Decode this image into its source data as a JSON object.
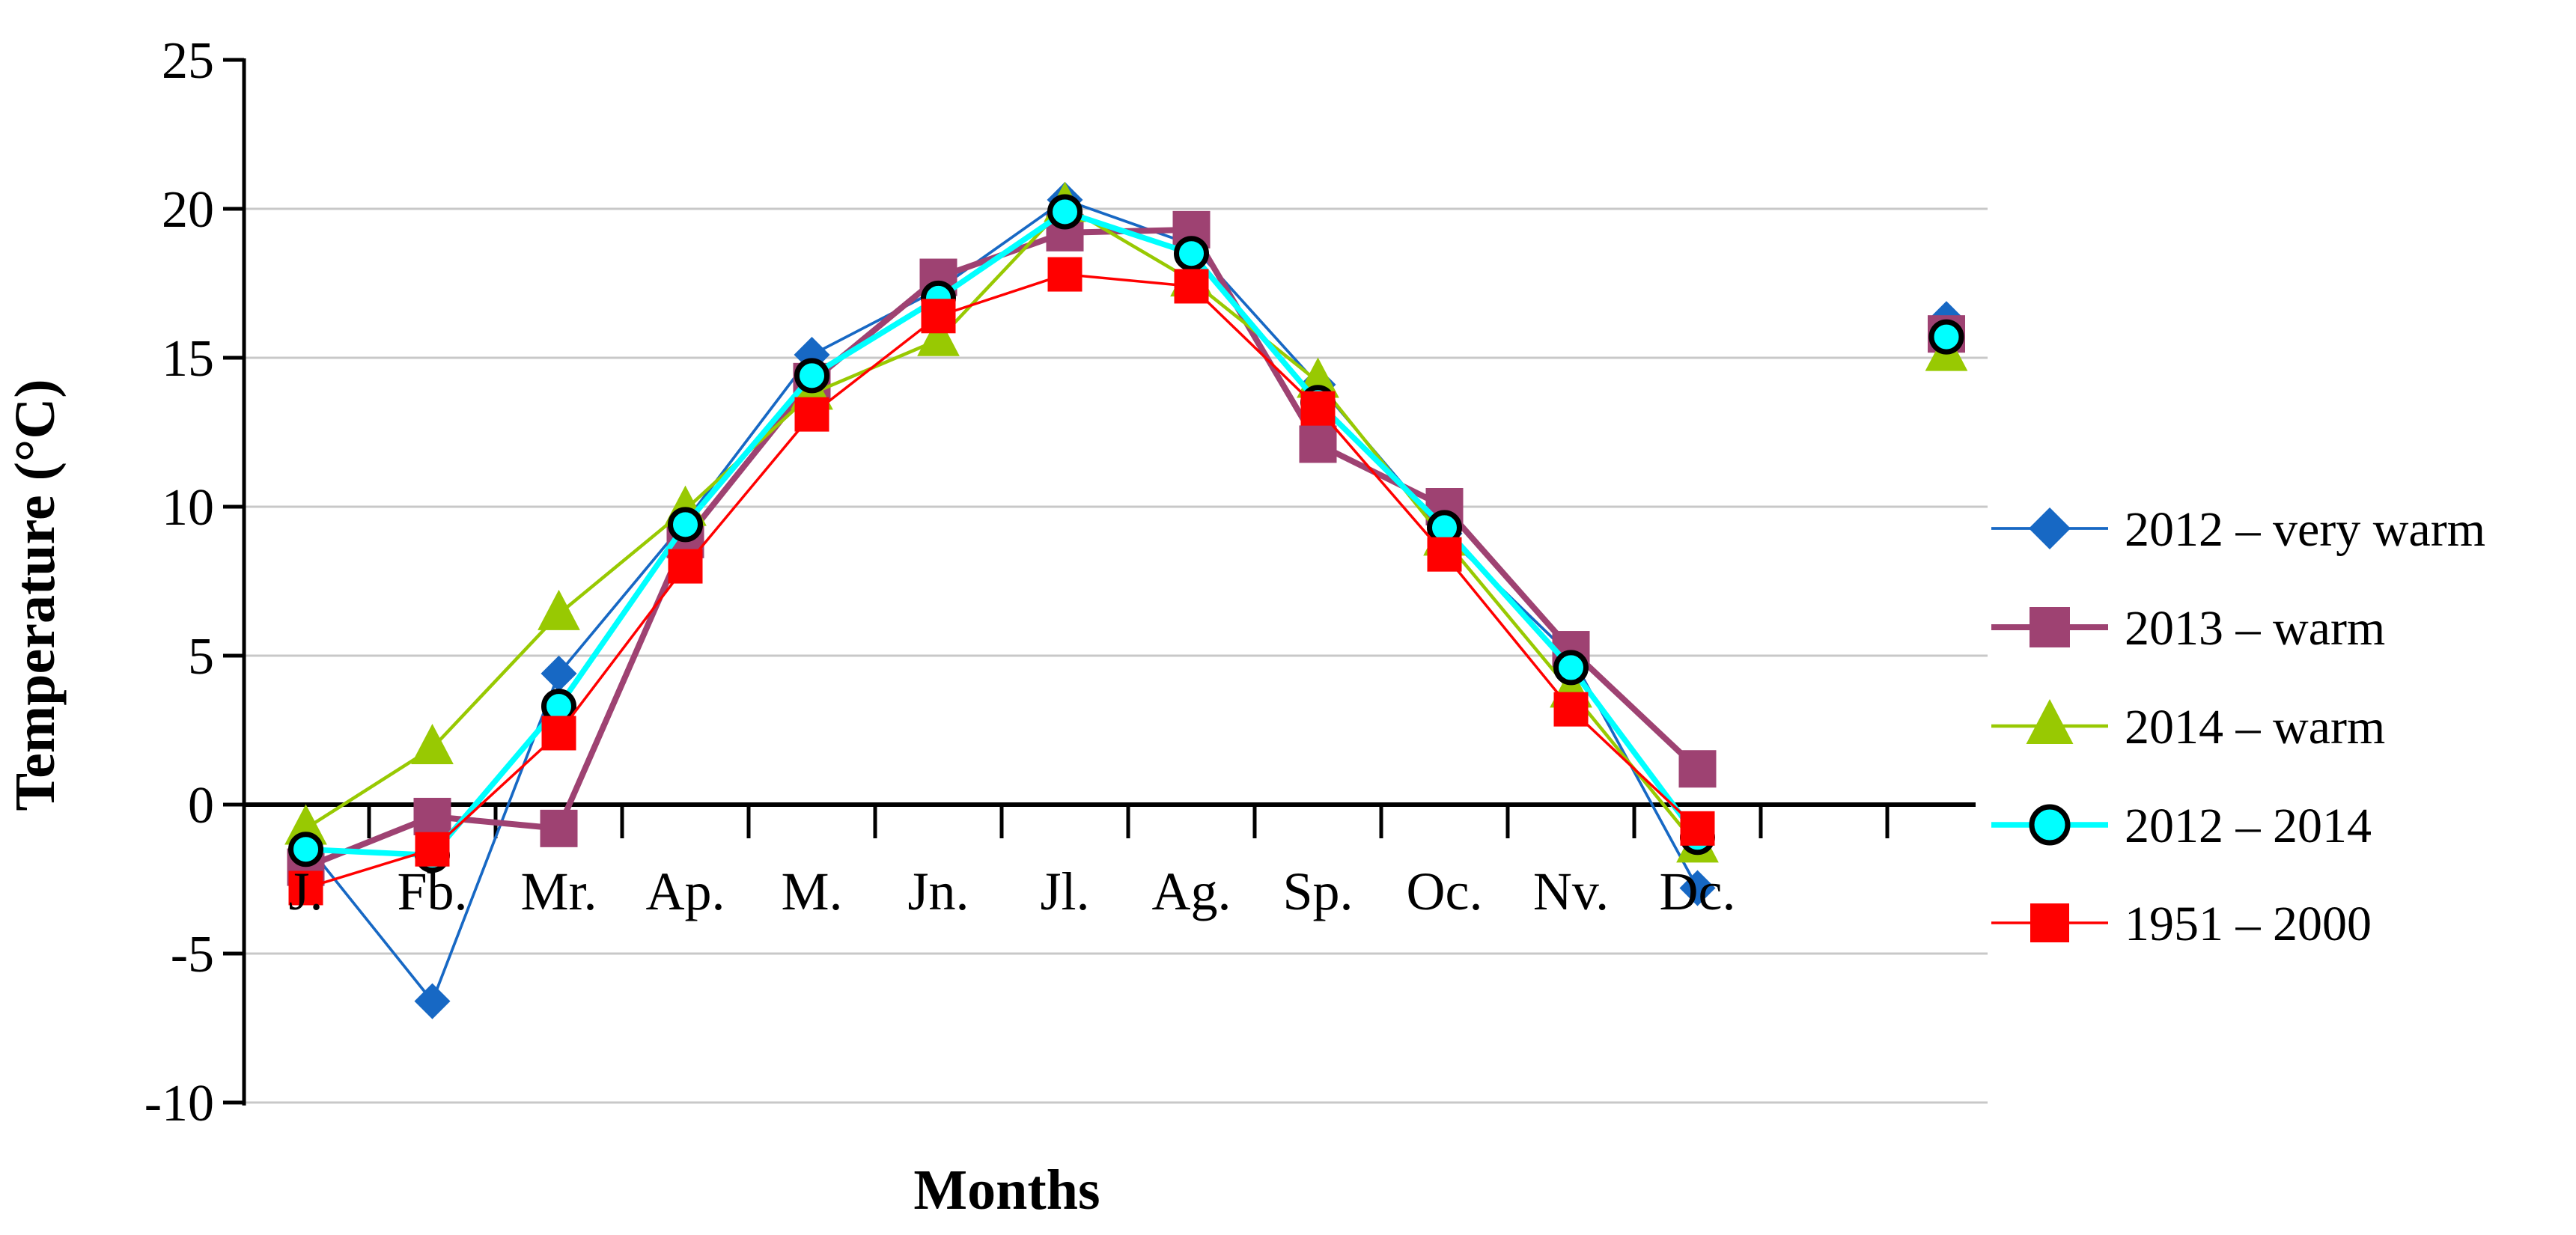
{
  "figure": {
    "background": "#FFFFFF",
    "y_axis_title": "Temperature (°C)",
    "x_axis_title": "Months"
  },
  "chart_data": {
    "type": "line",
    "title": "",
    "xlabel": "Months",
    "ylabel": "Temperature (°C)",
    "ylim": [
      -10,
      25
    ],
    "ytick_step": 5,
    "yticks": [
      25,
      20,
      15,
      10,
      5,
      0,
      -5,
      -10
    ],
    "ytick_labels": [
      "25",
      "20",
      "15",
      "10",
      "5",
      "0",
      "-5",
      "-10"
    ],
    "gridline_values": [
      20,
      15,
      10,
      5,
      -5,
      -10
    ],
    "grid": "horizontal-gray",
    "legend_position": "right",
    "categories": [
      "J.",
      "Fb.",
      "Mr.",
      "Ap.",
      "M.",
      "Jn.",
      "Jl.",
      "Ag.",
      "Sp.",
      "Oc.",
      "Nv.",
      "Dc."
    ],
    "extra_category": {
      "label": "",
      "note": "isolated cluster of season/period means plotted right of Dc., no connecting line, no red point"
    },
    "series": [
      {
        "name": "2012 – very warm",
        "color": "#1768C4",
        "marker": "diamond",
        "monthly": [
          -1.3,
          -6.6,
          4.4,
          9.5,
          15.1,
          17.3,
          20.3,
          18.8,
          14.1,
          9.1,
          5.0,
          -2.8
        ],
        "extra": 16.3
      },
      {
        "name": "2013 – warm",
        "color": "#9E4272",
        "marker": "square",
        "monthly": [
          -2.1,
          -0.4,
          -0.8,
          8.9,
          14.2,
          17.7,
          19.2,
          19.3,
          12.1,
          10.0,
          5.2,
          1.2
        ],
        "extra": 15.8
      },
      {
        "name": "2014 – warm",
        "color": "#98C902",
        "marker": "triangle",
        "monthly": [
          -0.8,
          1.9,
          6.4,
          9.9,
          13.8,
          15.6,
          20.1,
          17.6,
          14.2,
          8.9,
          3.8,
          -1.4
        ],
        "extra": 15.1
      },
      {
        "name": "2012 – 2014",
        "color": "#00FFFF",
        "marker": "circle",
        "marker_outline": "#000000",
        "monthly": [
          -1.5,
          -1.7,
          3.3,
          9.4,
          14.4,
          17.0,
          19.9,
          18.5,
          13.5,
          9.3,
          4.6,
          -1.1
        ],
        "extra": 15.7
      },
      {
        "name": "1951 – 2000",
        "color": "#FF0000",
        "marker": "square",
        "monthly": [
          -2.8,
          -1.5,
          2.4,
          8.0,
          13.1,
          16.4,
          17.8,
          17.4,
          13.3,
          8.4,
          3.2,
          -0.8
        ],
        "extra": null
      }
    ],
    "style_colors": {
      "axis": "#000000",
      "gridline": "#C8C8C8"
    }
  }
}
